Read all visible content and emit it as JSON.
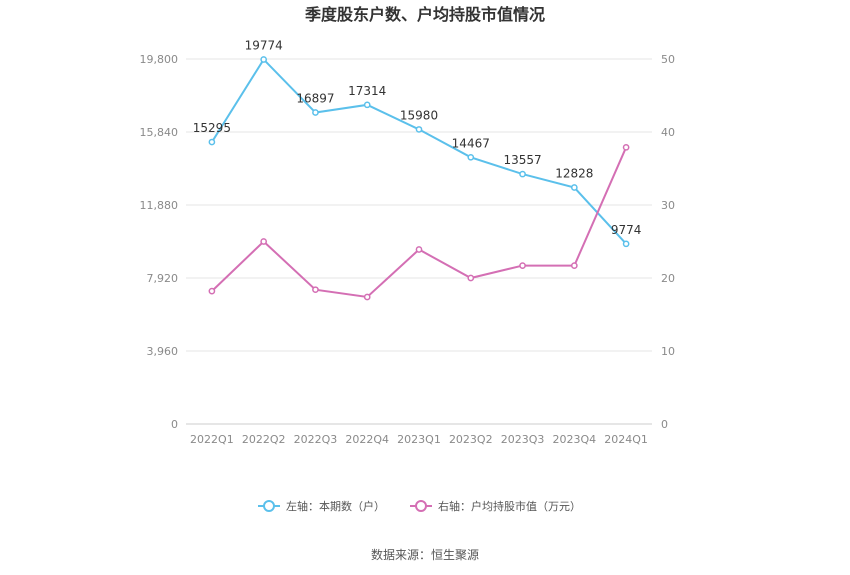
{
  "chart_data": {
    "type": "line",
    "title": "季度股东户数、户均持股市值情况",
    "categories": [
      "2022Q1",
      "2022Q2",
      "2022Q3",
      "2022Q4",
      "2023Q1",
      "2023Q2",
      "2023Q3",
      "2023Q4",
      "2024Q1"
    ],
    "left_axis": {
      "ylim": [
        0,
        19800
      ],
      "ticks": [
        0,
        3960,
        7920,
        11880,
        15840,
        19800
      ],
      "tick_labels": [
        "0",
        "3,960",
        "7,920",
        "11,880",
        "15,840",
        "19,800"
      ]
    },
    "right_axis": {
      "ylim": [
        0,
        50
      ],
      "ticks": [
        0,
        10,
        20,
        30,
        40,
        50
      ],
      "tick_labels": [
        "0",
        "10",
        "20",
        "30",
        "40",
        "50"
      ]
    },
    "series": [
      {
        "name": "左轴：本期数（户）",
        "axis": "left",
        "color": "#5bc0eb",
        "values": [
          15295,
          19774,
          16897,
          17314,
          15980,
          14467,
          13557,
          12828,
          9774
        ],
        "show_labels": true
      },
      {
        "name": "右轴：户均持股市值（万元）",
        "axis": "right",
        "color": "#d46fb4",
        "values": [
          18.2,
          25.0,
          18.4,
          17.4,
          23.9,
          20.0,
          21.7,
          21.7,
          37.9
        ],
        "show_labels": false
      }
    ],
    "grid": true,
    "legend_position": "bottom"
  },
  "source": "数据来源：恒生聚源"
}
